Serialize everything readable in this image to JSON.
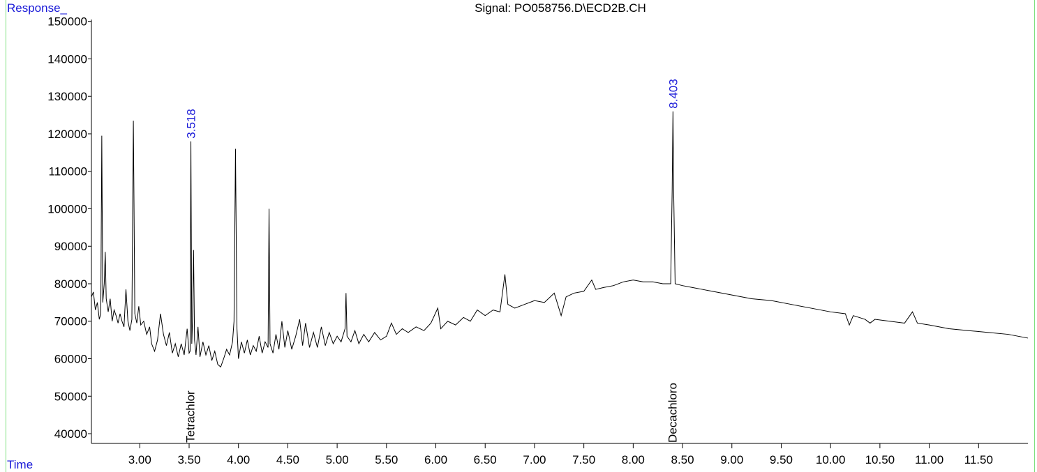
{
  "chart_data": {
    "type": "line",
    "title": "Signal: PO058756.D\\ECD2B.CH",
    "ylabel": "Response_",
    "xlabel": "Time",
    "color": "#000000",
    "xlim": [
      2.51,
      12.0
    ],
    "ylim": [
      37400,
      150500
    ],
    "xticks": [
      {
        "value": 3,
        "label": "3.00"
      },
      {
        "value": 3.5,
        "label": "3.50"
      },
      {
        "value": 4,
        "label": "4.00"
      },
      {
        "value": 4.5,
        "label": "4.50"
      },
      {
        "value": 5,
        "label": "5.00"
      },
      {
        "value": 5.5,
        "label": "5.50"
      },
      {
        "value": 6,
        "label": "6.00"
      },
      {
        "value": 6.5,
        "label": "6.50"
      },
      {
        "value": 7,
        "label": "7.00"
      },
      {
        "value": 7.5,
        "label": "7.50"
      },
      {
        "value": 8,
        "label": "8.00"
      },
      {
        "value": 8.5,
        "label": "8.50"
      },
      {
        "value": 9,
        "label": "9.00"
      },
      {
        "value": 9.5,
        "label": "9.50"
      },
      {
        "value": 10,
        "label": "10.00"
      },
      {
        "value": 10.5,
        "label": "10.50"
      },
      {
        "value": 11,
        "label": "11.00"
      },
      {
        "value": 11.5,
        "label": "11.50"
      }
    ],
    "yticks": [
      40000,
      50000,
      60000,
      70000,
      80000,
      90000,
      100000,
      110000,
      120000,
      130000,
      140000,
      150000
    ],
    "peaks": [
      {
        "x": 3.518,
        "name": "Tetrachlor"
      },
      {
        "x": 8.403,
        "name": "Decachloro"
      }
    ],
    "x": [
      2.51,
      2.53,
      2.55,
      2.57,
      2.59,
      2.605,
      2.615,
      2.625,
      2.64,
      2.65,
      2.66,
      2.68,
      2.7,
      2.72,
      2.74,
      2.76,
      2.78,
      2.8,
      2.82,
      2.84,
      2.86,
      2.88,
      2.9,
      2.92,
      2.935,
      2.95,
      2.97,
      2.99,
      3.01,
      3.04,
      3.07,
      3.1,
      3.12,
      3.15,
      3.18,
      3.21,
      3.24,
      3.27,
      3.3,
      3.33,
      3.36,
      3.39,
      3.42,
      3.45,
      3.48,
      3.5,
      3.51,
      3.518,
      3.527,
      3.535,
      3.545,
      3.555,
      3.57,
      3.59,
      3.61,
      3.64,
      3.67,
      3.7,
      3.73,
      3.76,
      3.79,
      3.82,
      3.85,
      3.88,
      3.91,
      3.94,
      3.955,
      3.97,
      3.985,
      4.0,
      4.03,
      4.06,
      4.09,
      4.12,
      4.15,
      4.18,
      4.21,
      4.24,
      4.27,
      4.3,
      4.31,
      4.32,
      4.35,
      4.38,
      4.41,
      4.44,
      4.47,
      4.5,
      4.54,
      4.58,
      4.62,
      4.65,
      4.68,
      4.72,
      4.76,
      4.8,
      4.84,
      4.88,
      4.92,
      4.96,
      5.0,
      5.04,
      5.08,
      5.09,
      5.1,
      5.14,
      5.18,
      5.22,
      5.27,
      5.32,
      5.38,
      5.44,
      5.5,
      5.55,
      5.6,
      5.66,
      5.72,
      5.8,
      5.88,
      5.95,
      6.02,
      6.05,
      6.12,
      6.2,
      6.28,
      6.35,
      6.42,
      6.5,
      6.58,
      6.65,
      6.7,
      6.73,
      6.8,
      6.9,
      7.0,
      7.1,
      7.2,
      7.27,
      7.32,
      7.4,
      7.5,
      7.58,
      7.62,
      7.7,
      7.8,
      7.9,
      8.0,
      8.1,
      8.2,
      8.3,
      8.38,
      8.395,
      8.403,
      8.41,
      8.425,
      8.5,
      8.6,
      8.7,
      8.8,
      9.0,
      9.2,
      9.4,
      9.6,
      9.8,
      10.0,
      10.15,
      10.19,
      10.23,
      10.35,
      10.4,
      10.45,
      10.6,
      10.75,
      10.83,
      10.88,
      11.0,
      11.2,
      11.4,
      11.6,
      11.8,
      12.0
    ],
    "values": [
      76500,
      77800,
      73000,
      75000,
      70500,
      72000,
      119500,
      75000,
      80000,
      88500,
      76000,
      72500,
      76000,
      70000,
      73000,
      71500,
      69500,
      72000,
      70000,
      68500,
      78500,
      70000,
      67500,
      70500,
      123500,
      72000,
      69500,
      74000,
      69000,
      70000,
      66500,
      68500,
      64000,
      62000,
      65000,
      72000,
      66500,
      63500,
      67000,
      61500,
      64000,
      60500,
      64000,
      61000,
      68000,
      61500,
      62000,
      118000,
      64000,
      70000,
      89000,
      65000,
      61000,
      68500,
      60500,
      64500,
      61000,
      63500,
      59500,
      62000,
      58500,
      57800,
      60000,
      62500,
      61000,
      64500,
      70000,
      116000,
      68000,
      60000,
      64500,
      61500,
      65000,
      61000,
      63500,
      62000,
      66000,
      61500,
      64500,
      63000,
      100000,
      64000,
      61500,
      66500,
      62500,
      70000,
      63000,
      67500,
      62500,
      66000,
      70500,
      63500,
      69500,
      63000,
      67000,
      63000,
      68500,
      63500,
      67000,
      64000,
      66000,
      64500,
      68000,
      77500,
      66000,
      64500,
      67500,
      64000,
      66500,
      64500,
      67000,
      65000,
      66000,
      69500,
      66500,
      68000,
      67000,
      68500,
      67500,
      69500,
      73500,
      68000,
      70000,
      69000,
      71000,
      70000,
      73000,
      71500,
      73000,
      72500,
      82500,
      74500,
      73500,
      74500,
      75500,
      75000,
      77500,
      71500,
      76500,
      77500,
      78000,
      81000,
      78500,
      79000,
      79500,
      80500,
      81000,
      80500,
      80500,
      80000,
      80000,
      105000,
      126000,
      105000,
      80000,
      79500,
      79000,
      78500,
      78000,
      77000,
      76000,
      75500,
      74500,
      73500,
      72500,
      72000,
      69000,
      71500,
      70500,
      69500,
      70500,
      70000,
      69500,
      72500,
      69500,
      69000,
      68000,
      67500,
      67000,
      66500,
      65500
    ]
  }
}
